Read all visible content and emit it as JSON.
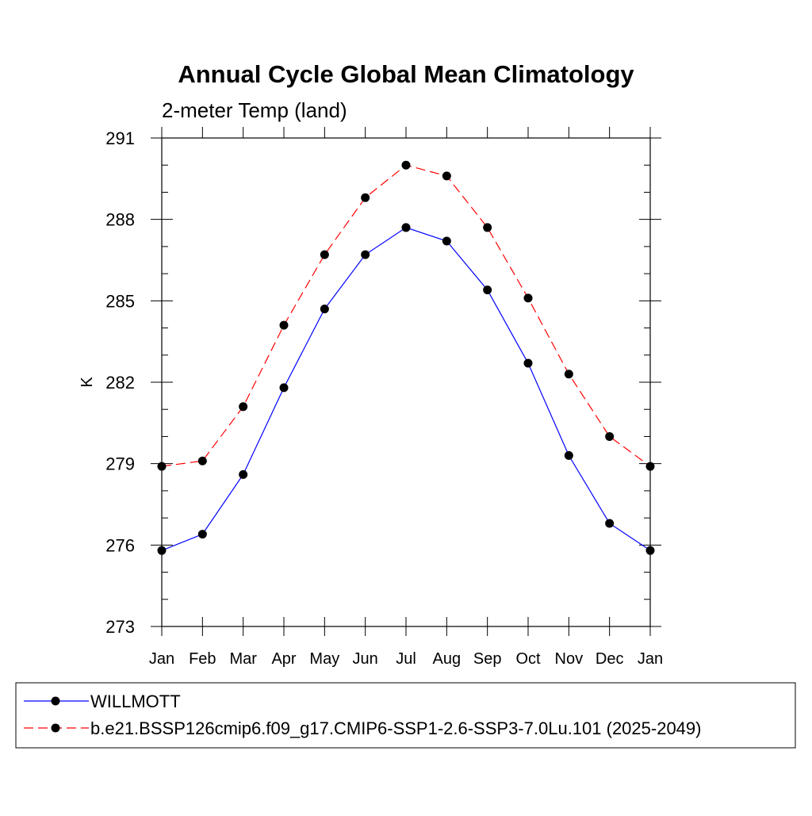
{
  "chart_data": {
    "type": "line",
    "title": "Annual Cycle Global Mean Climatology",
    "subtitle": "2-meter Temp (land)",
    "xlabel": "",
    "ylabel": "K",
    "categories": [
      "Jan",
      "Feb",
      "Mar",
      "Apr",
      "May",
      "Jun",
      "Jul",
      "Aug",
      "Sep",
      "Oct",
      "Nov",
      "Dec",
      "Jan"
    ],
    "ylim": [
      273,
      291
    ],
    "yticks": [
      273,
      276,
      279,
      282,
      285,
      288,
      291
    ],
    "yminor_step": 1,
    "grid": false,
    "legend_position": "bottom",
    "series": [
      {
        "name": "WILLMOTT",
        "color": "#0000ff",
        "dash": "solid",
        "marker": "filled-circle",
        "values": [
          275.8,
          276.4,
          278.6,
          281.8,
          284.7,
          286.7,
          287.7,
          287.2,
          285.4,
          282.7,
          279.3,
          276.8,
          275.8
        ]
      },
      {
        "name": "b.e21.BSSP126cmip6.f09_g17.CMIP6-SSP1-2.6-SSP3-7.0Lu.101 (2025-2049)",
        "color": "#ff0000",
        "dash": "dashed",
        "marker": "filled-circle",
        "values": [
          278.9,
          279.1,
          281.1,
          284.1,
          286.7,
          288.8,
          290.0,
          289.6,
          287.7,
          285.1,
          282.3,
          280.0,
          278.9
        ]
      }
    ]
  }
}
